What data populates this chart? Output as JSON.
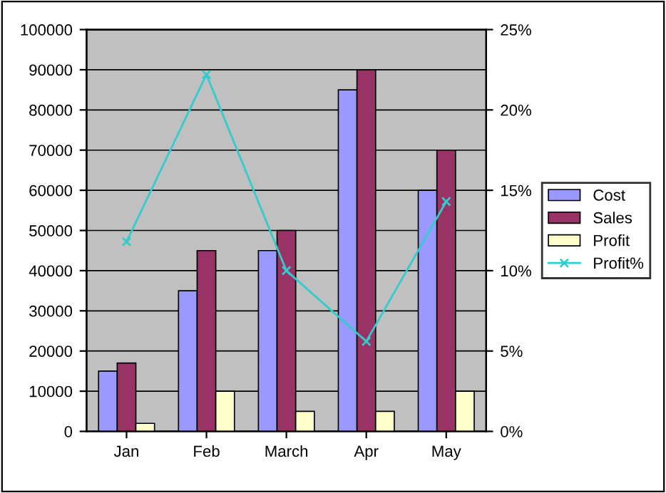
{
  "chart_data": {
    "type": "bar",
    "categories": [
      "Jan",
      "Feb",
      "March",
      "Apr",
      "May"
    ],
    "series": [
      {
        "name": "Cost",
        "color": "#9999ff",
        "values": [
          15000,
          35000,
          45000,
          85000,
          60000
        ]
      },
      {
        "name": "Sales",
        "color": "#993366",
        "values": [
          17000,
          45000,
          50000,
          90000,
          70000
        ]
      },
      {
        "name": "Profit",
        "color": "#ffffcc",
        "values": [
          2000,
          10000,
          5000,
          5000,
          10000
        ]
      },
      {
        "name": "Profit%",
        "type": "line",
        "axis": "y2",
        "color": "#33cccc",
        "marker": "cross",
        "values": [
          11.8,
          22.2,
          10,
          5.6,
          14.3
        ]
      }
    ],
    "ylim": [
      0,
      100000
    ],
    "yticks": [
      0,
      10000,
      20000,
      30000,
      40000,
      50000,
      60000,
      70000,
      80000,
      90000,
      100000
    ],
    "y2lim": [
      0,
      25
    ],
    "y2ticks": [
      {
        "value": 0,
        "label": "0%"
      },
      {
        "value": 5,
        "label": "5%"
      },
      {
        "value": 10,
        "label": "10%"
      },
      {
        "value": 15,
        "label": "15%"
      },
      {
        "value": 20,
        "label": "20%"
      },
      {
        "value": 25,
        "label": "25%"
      }
    ],
    "grid": "y",
    "legend": "right"
  }
}
